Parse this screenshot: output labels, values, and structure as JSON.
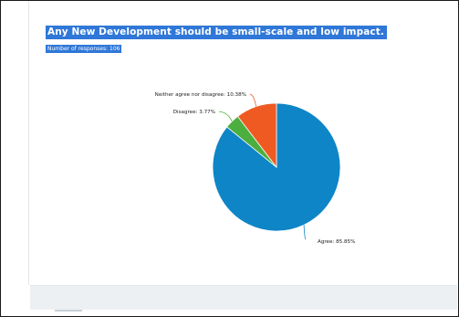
{
  "header": {
    "title": "Any New Development should be small-scale and low impact.",
    "responses": "Number of responses: 106"
  },
  "chart_data": {
    "type": "pie",
    "title": "Any New Development should be small-scale and low impact.",
    "slices": [
      {
        "label": "Agree: 85.85%",
        "value": 85.85,
        "color": "#0e85c6"
      },
      {
        "label": "Disagree: 3.77%",
        "value": 3.77,
        "color": "#4cae3e"
      },
      {
        "label": "Neither agree nor disagree: 10.38%",
        "value": 10.38,
        "color": "#ee5a22"
      }
    ],
    "legend": "none"
  }
}
